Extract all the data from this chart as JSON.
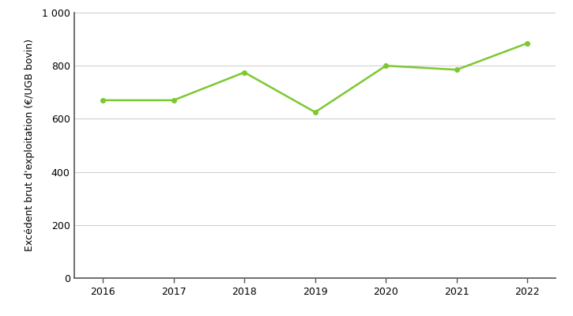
{
  "years": [
    2016,
    2017,
    2018,
    2019,
    2020,
    2021,
    2022
  ],
  "values": [
    670,
    670,
    775,
    625,
    800,
    785,
    885
  ],
  "line_color": "#7DC832",
  "marker_color": "#7DC832",
  "marker_style": "o",
  "marker_size": 4,
  "line_width": 1.8,
  "ylabel": "Excédent brut d'exploitation (€/UGB bovin)",
  "ylim": [
    0,
    1000
  ],
  "ytick_values": [
    0,
    200,
    400,
    600,
    800,
    1000
  ],
  "ytick_labels": [
    "0",
    "200",
    "400",
    "600",
    "800",
    "1 000"
  ],
  "xlim_left": 2015.6,
  "xlim_right": 2022.4,
  "grid_color": "#cccccc",
  "grid_linewidth": 0.7,
  "bg_color": "#ffffff",
  "bottom_spine_color": "#555555",
  "left_spine_color": "#555555",
  "tick_fontsize": 9,
  "ylabel_fontsize": 9
}
